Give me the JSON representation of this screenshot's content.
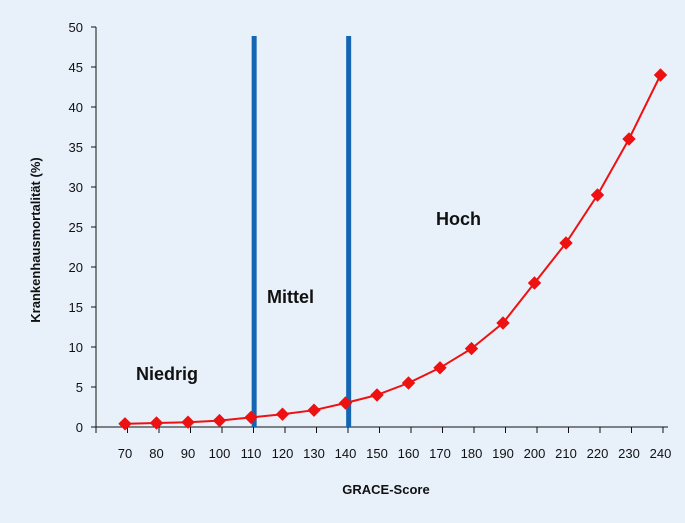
{
  "chart_data": {
    "type": "line",
    "title": "",
    "xlabel": "GRACE-Score",
    "ylabel": "Krankenhausmortalität (%)",
    "xlim": [
      70,
      240
    ],
    "ylim": [
      0,
      50
    ],
    "xticks": [
      70,
      80,
      90,
      100,
      110,
      120,
      130,
      140,
      150,
      160,
      170,
      180,
      190,
      200,
      210,
      220,
      230,
      240
    ],
    "yticks": [
      0,
      5,
      10,
      15,
      20,
      25,
      30,
      35,
      40,
      45,
      50
    ],
    "grid": false,
    "series": [
      {
        "color": "#ee1111",
        "marker": "diamond",
        "x": [
          70,
          80,
          90,
          100,
          110,
          120,
          130,
          140,
          150,
          160,
          170,
          180,
          190,
          200,
          210,
          220,
          230,
          240
        ],
        "y": [
          0.4,
          0.5,
          0.6,
          0.8,
          1.2,
          1.6,
          2.1,
          3.0,
          4.0,
          5.5,
          7.4,
          9.8,
          13.0,
          18.0,
          23.0,
          29.0,
          36.0,
          44.0
        ]
      }
    ],
    "thresholds": [
      {
        "x": 111,
        "color": "#1466b3"
      },
      {
        "x": 141,
        "color": "#1466b3"
      }
    ],
    "regions": [
      {
        "label": "Niedrig"
      },
      {
        "label": "Mittel"
      },
      {
        "label": "Hoch"
      }
    ]
  }
}
